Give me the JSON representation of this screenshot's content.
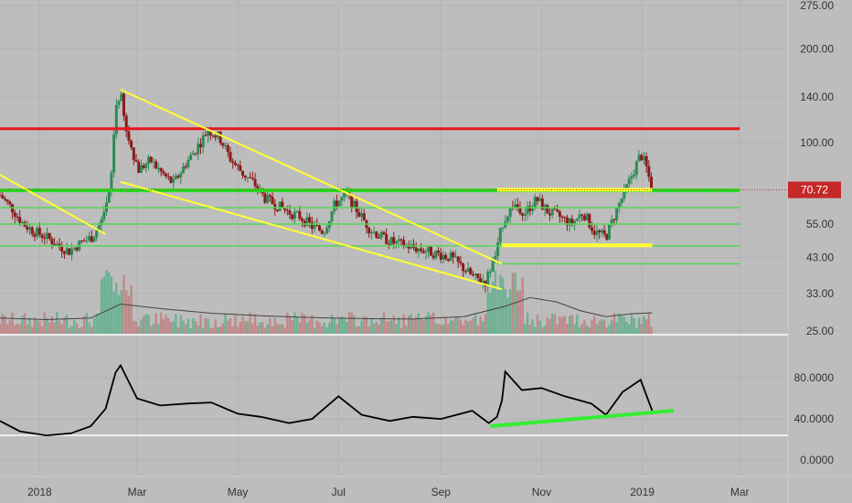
{
  "colors": {
    "background": "#bdbdbd",
    "axis_text": "#333333",
    "pane_separator": "#ffffff",
    "up_candle": "#2e8b57",
    "down_candle": "#8b1a1a",
    "volume_up": "#5fae8c",
    "volume_down": "#c08080",
    "volume_ma": "#444444",
    "trendline_yellow": "#ffff33",
    "resistance_red": "#e8161b",
    "support_green": "#22dd22",
    "price_tag_bg": "#c62828",
    "oscillator_line": "#000000",
    "divergence_line": "#33ee33"
  },
  "chart_data": [
    {
      "type": "candlestick",
      "pane": "price",
      "y_scale": "log",
      "ylim": [
        25,
        275
      ],
      "price_tick_labels": [
        "275.00",
        "200.00",
        "140.00",
        "100.00",
        "70.72",
        "55.00",
        "43.00",
        "33.00",
        "25.00"
      ],
      "price_ticks": [
        275,
        200,
        140,
        100,
        55,
        43,
        33,
        25
      ],
      "last_price": 70.72,
      "last_price_label": "70.72",
      "x_tick_labels": [
        "2018",
        "Mar",
        "May",
        "Jul",
        "Sep",
        "Nov",
        "2019",
        "Mar"
      ],
      "x_ticks": [
        "2018-01-01",
        "2018-03-01",
        "2018-05-01",
        "2018-07-01",
        "2018-09-01",
        "2018-11-01",
        "2019-01-01",
        "2019-03-01"
      ],
      "xlim": [
        "2017-12-08",
        "2019-05-08"
      ],
      "close_path": [
        [
          "2017-12-08",
          68
        ],
        [
          "2017-12-15",
          62
        ],
        [
          "2017-12-22",
          55
        ],
        [
          "2017-12-29",
          52
        ],
        [
          "2018-01-05",
          50
        ],
        [
          "2018-01-12",
          47
        ],
        [
          "2018-01-19",
          45
        ],
        [
          "2018-01-26",
          48
        ],
        [
          "2018-02-02",
          50
        ],
        [
          "2018-02-09",
          58
        ],
        [
          "2018-02-13",
          72
        ],
        [
          "2018-02-16",
          130
        ],
        [
          "2018-02-19",
          145
        ],
        [
          "2018-02-22",
          110
        ],
        [
          "2018-02-26",
          95
        ],
        [
          "2018-03-02",
          82
        ],
        [
          "2018-03-09",
          88
        ],
        [
          "2018-03-16",
          80
        ],
        [
          "2018-03-23",
          74
        ],
        [
          "2018-03-30",
          85
        ],
        [
          "2018-04-06",
          96
        ],
        [
          "2018-04-13",
          110
        ],
        [
          "2018-04-20",
          104
        ],
        [
          "2018-04-27",
          88
        ],
        [
          "2018-05-04",
          80
        ],
        [
          "2018-05-11",
          74
        ],
        [
          "2018-05-18",
          66
        ],
        [
          "2018-05-25",
          63
        ],
        [
          "2018-06-01",
          60
        ],
        [
          "2018-06-08",
          58
        ],
        [
          "2018-06-15",
          54
        ],
        [
          "2018-06-22",
          52
        ],
        [
          "2018-06-29",
          64
        ],
        [
          "2018-07-06",
          68
        ],
        [
          "2018-07-13",
          60
        ],
        [
          "2018-07-20",
          53
        ],
        [
          "2018-07-27",
          50
        ],
        [
          "2018-08-03",
          48
        ],
        [
          "2018-08-10",
          47
        ],
        [
          "2018-08-17",
          46
        ],
        [
          "2018-08-24",
          45
        ],
        [
          "2018-08-31",
          44
        ],
        [
          "2018-09-07",
          43
        ],
        [
          "2018-09-14",
          40
        ],
        [
          "2018-09-21",
          37
        ],
        [
          "2018-09-28",
          36
        ],
        [
          "2018-10-05",
          45
        ],
        [
          "2018-10-08",
          55
        ],
        [
          "2018-10-15",
          64
        ],
        [
          "2018-10-22",
          60
        ],
        [
          "2018-10-29",
          66
        ],
        [
          "2018-11-05",
          60
        ],
        [
          "2018-11-12",
          58
        ],
        [
          "2018-11-19",
          55
        ],
        [
          "2018-11-26",
          60
        ],
        [
          "2018-12-03",
          52
        ],
        [
          "2018-12-10",
          50
        ],
        [
          "2018-12-17",
          62
        ],
        [
          "2018-12-24",
          75
        ],
        [
          "2018-12-31",
          92
        ],
        [
          "2019-01-03",
          85
        ],
        [
          "2019-01-07",
          70.72
        ]
      ],
      "volume_ma_path": [
        [
          "2017-12-08",
          27.5
        ],
        [
          "2018-01-05",
          27.2
        ],
        [
          "2018-02-01",
          27.5
        ],
        [
          "2018-02-19",
          30.5
        ],
        [
          "2018-03-15",
          29.5
        ],
        [
          "2018-04-15",
          28.5
        ],
        [
          "2018-05-15",
          28.0
        ],
        [
          "2018-06-15",
          27.6
        ],
        [
          "2018-07-15",
          27.4
        ],
        [
          "2018-08-15",
          27.3
        ],
        [
          "2018-09-15",
          27.8
        ],
        [
          "2018-10-10",
          30.0
        ],
        [
          "2018-10-25",
          32.0
        ],
        [
          "2018-11-10",
          31.0
        ],
        [
          "2018-11-25",
          29.0
        ],
        [
          "2018-12-10",
          27.8
        ],
        [
          "2018-12-25",
          28.4
        ],
        [
          "2019-01-07",
          28.6
        ]
      ],
      "drawings": [
        {
          "name": "resistance-red",
          "color": "#e8161b",
          "points": [
            [
              "2017-12-08",
              111
            ],
            [
              "2019-03-01",
              111
            ]
          ]
        },
        {
          "name": "support-green-main",
          "color": "#22dd22",
          "points": [
            [
              "2017-12-08",
              70.5
            ],
            [
              "2019-03-01",
              70.5
            ]
          ]
        },
        {
          "name": "support-green-2",
          "color": "#55d655",
          "points": [
            [
              "2017-12-08",
              62
            ],
            [
              "2019-03-01",
              62
            ]
          ]
        },
        {
          "name": "support-green-3",
          "color": "#55d655",
          "points": [
            [
              "2017-12-08",
              55
            ],
            [
              "2019-03-01",
              55
            ]
          ]
        },
        {
          "name": "support-green-4",
          "color": "#55d655",
          "points": [
            [
              "2017-12-08",
              46.8
            ],
            [
              "2019-03-01",
              46.8
            ]
          ]
        },
        {
          "name": "support-green-5",
          "color": "#55d655",
          "points": [
            [
              "2018-10-05",
              41
            ],
            [
              "2019-03-01",
              41
            ]
          ]
        },
        {
          "name": "wedge-upper",
          "color": "#ffff33",
          "points": [
            [
              "2018-02-19",
              148
            ],
            [
              "2018-10-08",
              41
            ]
          ]
        },
        {
          "name": "wedge-lower",
          "color": "#ffff33",
          "points": [
            [
              "2018-02-19",
              75
            ],
            [
              "2018-10-08",
              34
            ]
          ]
        },
        {
          "name": "early-downtrend",
          "color": "#ffff33",
          "points": [
            [
              "2017-12-08",
              79
            ],
            [
              "2018-02-10",
              51
            ]
          ]
        },
        {
          "name": "range-top-yellow",
          "color": "#ffff33",
          "points": [
            [
              "2018-10-05",
              70.8
            ],
            [
              "2019-01-07",
              70.8
            ]
          ]
        },
        {
          "name": "range-bottom-yellow",
          "color": "#ffff33",
          "points": [
            [
              "2018-10-08",
              47
            ],
            [
              "2019-01-07",
              47
            ]
          ]
        }
      ]
    },
    {
      "type": "line",
      "pane": "oscillator",
      "ylim": [
        -15,
        120
      ],
      "y_tick_labels": [
        "80.0000",
        "40.0000",
        "0.0000"
      ],
      "y_ticks": [
        80,
        40,
        0
      ],
      "series": [
        {
          "points": [
            [
              "2017-12-08",
              38
            ],
            [
              "2017-12-20",
              28
            ],
            [
              "2018-01-05",
              24
            ],
            [
              "2018-01-20",
              26
            ],
            [
              "2018-02-01",
              33
            ],
            [
              "2018-02-10",
              50
            ],
            [
              "2018-02-16",
              85
            ],
            [
              "2018-02-19",
              92
            ],
            [
              "2018-03-01",
              60
            ],
            [
              "2018-03-15",
              53
            ],
            [
              "2018-04-01",
              55
            ],
            [
              "2018-04-15",
              56
            ],
            [
              "2018-05-01",
              45
            ],
            [
              "2018-05-15",
              42
            ],
            [
              "2018-06-01",
              36
            ],
            [
              "2018-06-15",
              40
            ],
            [
              "2018-07-01",
              62
            ],
            [
              "2018-07-15",
              44
            ],
            [
              "2018-08-01",
              38
            ],
            [
              "2018-08-15",
              42
            ],
            [
              "2018-09-01",
              40
            ],
            [
              "2018-09-20",
              48
            ],
            [
              "2018-09-30",
              36
            ],
            [
              "2018-10-05",
              42
            ],
            [
              "2018-10-08",
              58
            ],
            [
              "2018-10-10",
              86
            ],
            [
              "2018-10-20",
              68
            ],
            [
              "2018-11-01",
              70
            ],
            [
              "2018-11-15",
              62
            ],
            [
              "2018-12-01",
              55
            ],
            [
              "2018-12-10",
              44
            ],
            [
              "2018-12-20",
              66
            ],
            [
              "2018-12-31",
              78
            ],
            [
              "2019-01-07",
              48
            ]
          ]
        }
      ],
      "divergence_line": [
        [
          "2018-10-01",
          33
        ],
        [
          "2019-01-20",
          48
        ]
      ]
    }
  ]
}
